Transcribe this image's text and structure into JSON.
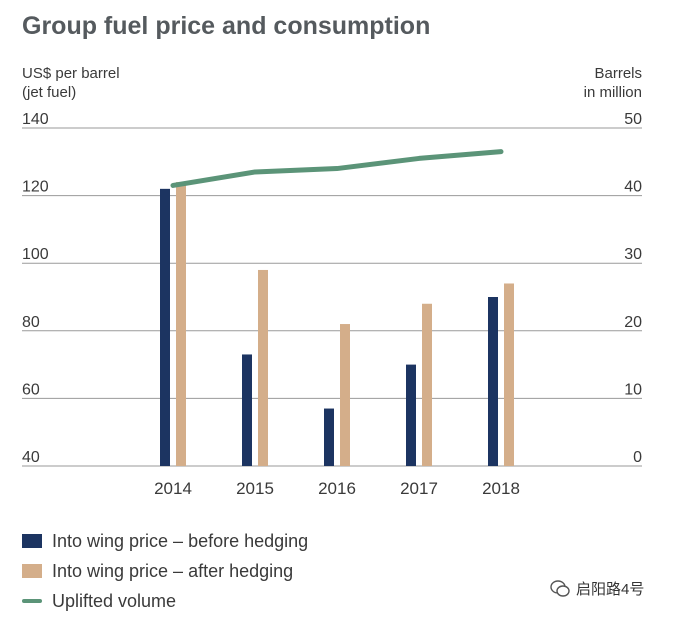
{
  "title": "Group fuel price and consumption",
  "left_axis_title": [
    "US$ per barrel",
    "(jet fuel)"
  ],
  "right_axis_title": [
    "Barrels",
    "in million"
  ],
  "watermark": "启阳路4号",
  "colors": {
    "before": "#1c3461",
    "after": "#d4ae8a",
    "volume": "#5b9478",
    "grid": "#9a9a9a"
  },
  "chart_data": {
    "type": "bar",
    "categories": [
      "2014",
      "2015",
      "2016",
      "2017",
      "2018"
    ],
    "series": [
      {
        "name": "Into wing price – before hedging",
        "axis": "left",
        "values": [
          122,
          73,
          57,
          70,
          90
        ]
      },
      {
        "name": "Into wing price – after hedging",
        "axis": "left",
        "values": [
          124,
          98,
          82,
          88,
          94
        ]
      },
      {
        "name": "Uplifted volume",
        "type": "line",
        "axis": "right",
        "values": [
          41.5,
          43.5,
          44,
          45.5,
          46.5
        ]
      }
    ],
    "ylim_left": [
      40,
      140
    ],
    "yticks_left": [
      "40",
      "60",
      "80",
      "100",
      "120",
      "140"
    ],
    "ylim_right": [
      0,
      50
    ],
    "yticks_right": [
      "0",
      "10",
      "20",
      "30",
      "40",
      "50"
    ],
    "grid": true,
    "legend_position": "bottom-left"
  }
}
